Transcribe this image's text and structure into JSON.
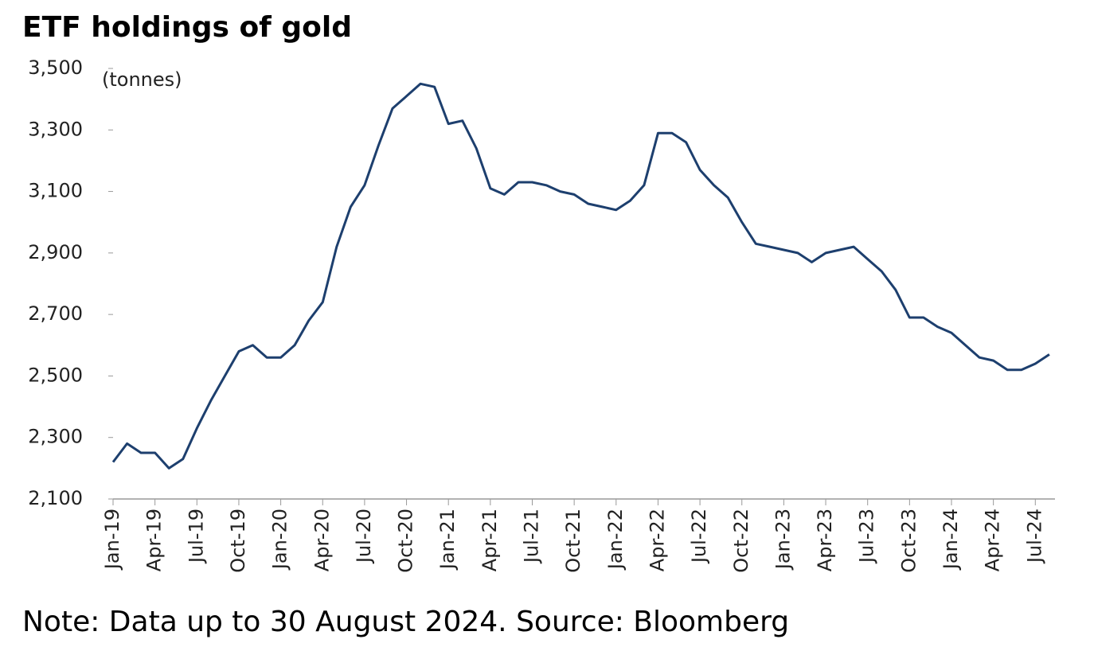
{
  "chart_data": {
    "type": "line",
    "title": "ETF holdings of gold",
    "y_label": "(tonnes)",
    "note": "Note: Data up to 30 August 2024. Source: Bloomberg",
    "x": [
      "Jan-19",
      "Feb-19",
      "Mar-19",
      "Apr-19",
      "May-19",
      "Jun-19",
      "Jul-19",
      "Aug-19",
      "Sep-19",
      "Oct-19",
      "Nov-19",
      "Dec-19",
      "Jan-20",
      "Feb-20",
      "Mar-20",
      "Apr-20",
      "May-20",
      "Jun-20",
      "Jul-20",
      "Aug-20",
      "Sep-20",
      "Oct-20",
      "Nov-20",
      "Dec-20",
      "Jan-21",
      "Feb-21",
      "Mar-21",
      "Apr-21",
      "May-21",
      "Jun-21",
      "Jul-21",
      "Aug-21",
      "Sep-21",
      "Oct-21",
      "Nov-21",
      "Dec-21",
      "Jan-22",
      "Feb-22",
      "Mar-22",
      "Apr-22",
      "May-22",
      "Jun-22",
      "Jul-22",
      "Aug-22",
      "Sep-22",
      "Oct-22",
      "Nov-22",
      "Dec-22",
      "Jan-23",
      "Feb-23",
      "Mar-23",
      "Apr-23",
      "May-23",
      "Jun-23",
      "Jul-23",
      "Aug-23",
      "Sep-23",
      "Oct-23",
      "Nov-23",
      "Dec-23",
      "Jan-24",
      "Feb-24",
      "Mar-24",
      "Apr-24",
      "May-24",
      "Jun-24",
      "Jul-24",
      "Aug-24"
    ],
    "series": [
      {
        "name": "ETF holdings",
        "color": "#1d3f6e",
        "values": [
          2220,
          2280,
          2250,
          2250,
          2200,
          2230,
          2330,
          2420,
          2500,
          2580,
          2600,
          2560,
          2560,
          2600,
          2680,
          2740,
          2920,
          3050,
          3120,
          3250,
          3370,
          3410,
          3450,
          3440,
          3320,
          3330,
          3240,
          3110,
          3090,
          3130,
          3130,
          3120,
          3100,
          3090,
          3060,
          3050,
          3040,
          3070,
          3120,
          3290,
          3290,
          3260,
          3170,
          3120,
          3080,
          3000,
          2930,
          2920,
          2910,
          2900,
          2870,
          2900,
          2910,
          2920,
          2880,
          2840,
          2780,
          2690,
          2690,
          2660,
          2640,
          2600,
          2560,
          2550,
          2520,
          2520,
          2540,
          2570
        ]
      }
    ],
    "ylim": [
      2100,
      3500
    ],
    "yticks": [
      {
        "value": 2100,
        "label": "2,100"
      },
      {
        "value": 2300,
        "label": "2,300"
      },
      {
        "value": 2500,
        "label": "2,500"
      },
      {
        "value": 2700,
        "label": "2,700"
      },
      {
        "value": 2900,
        "label": "2,900"
      },
      {
        "value": 3100,
        "label": "3,100"
      },
      {
        "value": 3300,
        "label": "3,300"
      },
      {
        "value": 3500,
        "label": "3,500"
      }
    ],
    "grid": false
  }
}
